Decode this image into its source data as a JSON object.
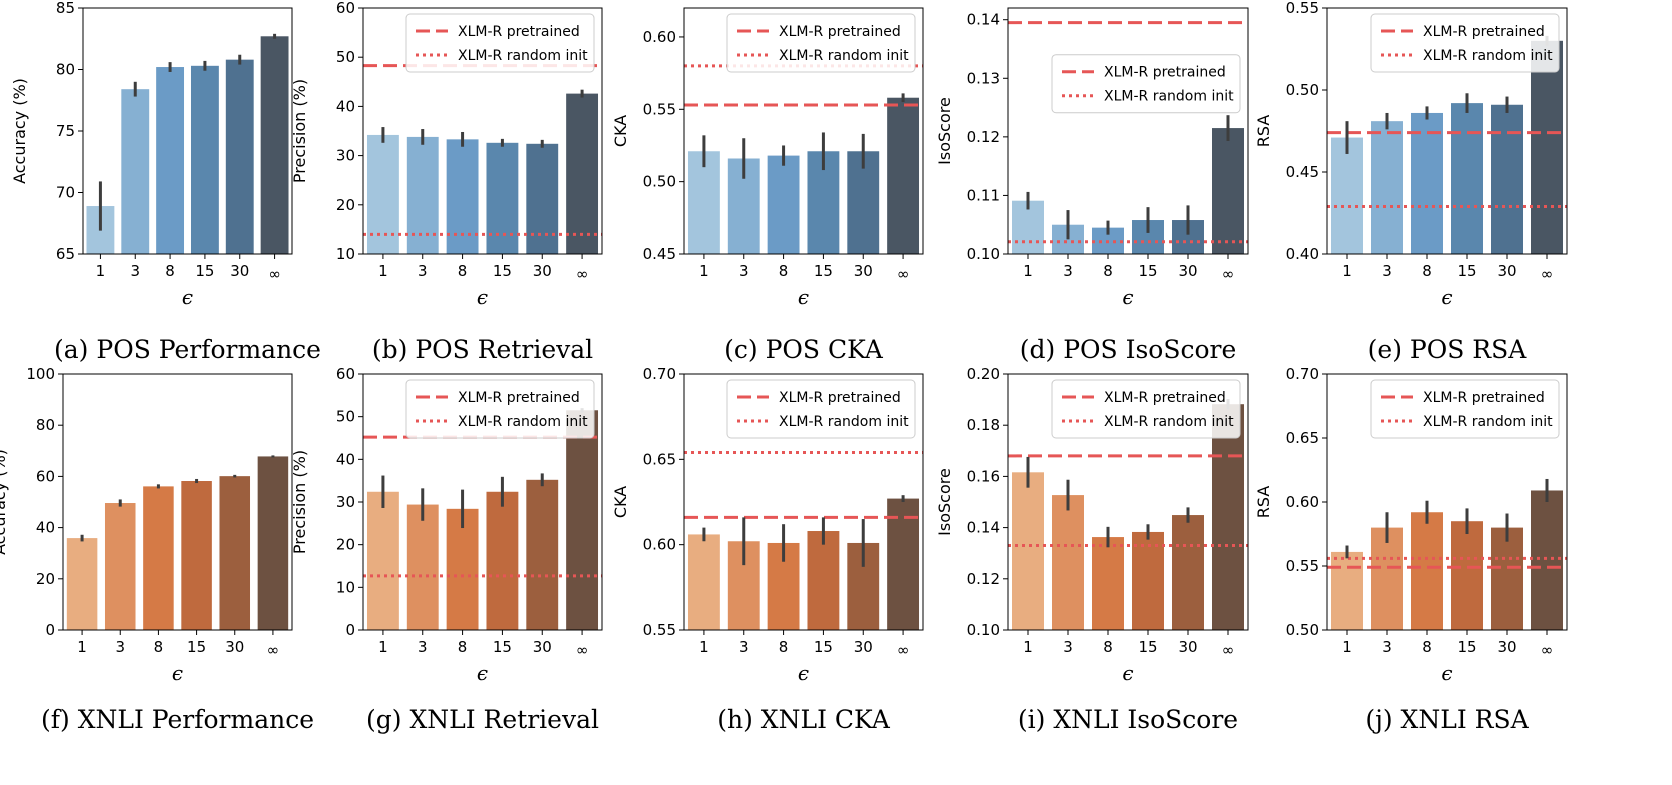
{
  "chart_data": [
    {
      "type": "bar",
      "title": "",
      "caption": "(a) POS Performance",
      "categories": [
        "1",
        "3",
        "8",
        "15",
        "30",
        "∞"
      ],
      "values": [
        68.9,
        78.4,
        80.2,
        80.3,
        80.8,
        82.7
      ],
      "errors": [
        2.0,
        0.6,
        0.4,
        0.4,
        0.4,
        0.2
      ],
      "ylabel": "Accuracy (%)",
      "xlabel": "ϵ",
      "ylim": [
        65,
        85
      ],
      "yticks": [
        65,
        70,
        75,
        80,
        85
      ],
      "ytick_labels": [
        "65",
        "70",
        "75",
        "80",
        "85"
      ],
      "palette": "blue",
      "legend": null,
      "lines": []
    },
    {
      "type": "bar",
      "title": "",
      "caption": "(b) POS Retrieval",
      "categories": [
        "1",
        "3",
        "8",
        "15",
        "30",
        "∞"
      ],
      "values": [
        34.2,
        33.8,
        33.3,
        32.6,
        32.4,
        42.6
      ],
      "errors": [
        1.6,
        1.6,
        1.5,
        0.8,
        0.8,
        0.8
      ],
      "ylabel": "Precision (%)",
      "xlabel": "ϵ",
      "ylim": [
        10,
        60
      ],
      "yticks": [
        10,
        20,
        30,
        40,
        50,
        60
      ],
      "ytick_labels": [
        "10",
        "20",
        "30",
        "40",
        "50",
        "60"
      ],
      "palette": "blue",
      "legend": "top-right",
      "lines": [
        {
          "label": "XLM-R pretrained",
          "style": "dashed",
          "value": 48.3
        },
        {
          "label": "XLM-R random init",
          "style": "dotted",
          "value": 14.0
        }
      ]
    },
    {
      "type": "bar",
      "title": "",
      "caption": "(c) POS CKA",
      "categories": [
        "1",
        "3",
        "8",
        "15",
        "30",
        "∞"
      ],
      "values": [
        0.521,
        0.516,
        0.518,
        0.521,
        0.521,
        0.558
      ],
      "errors": [
        0.011,
        0.014,
        0.007,
        0.013,
        0.012,
        0.003
      ],
      "ylabel": "CKA",
      "xlabel": "ϵ",
      "ylim": [
        0.45,
        0.62
      ],
      "yticks": [
        0.45,
        0.5,
        0.55,
        0.6
      ],
      "ytick_labels": [
        "0.45",
        "0.50",
        "0.55",
        "0.60"
      ],
      "palette": "blue",
      "legend": "top-right",
      "lines": [
        {
          "label": "XLM-R pretrained",
          "style": "dashed",
          "value": 0.553
        },
        {
          "label": "XLM-R random init",
          "style": "dotted",
          "value": 0.58
        }
      ]
    },
    {
      "type": "bar",
      "title": "",
      "caption": "(d) POS IsoScore",
      "categories": [
        "1",
        "3",
        "8",
        "15",
        "30",
        "∞"
      ],
      "values": [
        0.1091,
        0.105,
        0.1045,
        0.1058,
        0.1058,
        0.1215
      ],
      "errors": [
        0.0015,
        0.0025,
        0.0012,
        0.0022,
        0.0025,
        0.0022
      ],
      "ylabel": "IsoScore",
      "xlabel": "ϵ",
      "ylim": [
        0.1,
        0.142
      ],
      "yticks": [
        0.1,
        0.11,
        0.12,
        0.13,
        0.14
      ],
      "ytick_labels": [
        "0.10",
        "0.11",
        "0.12",
        "0.13",
        "0.14"
      ],
      "palette": "blue",
      "legend": "center-right",
      "lines": [
        {
          "label": "XLM-R pretrained",
          "style": "dashed",
          "value": 0.1395
        },
        {
          "label": "XLM-R random init",
          "style": "dotted",
          "value": 0.1021
        }
      ]
    },
    {
      "type": "bar",
      "title": "",
      "caption": "(e) POS RSA",
      "categories": [
        "1",
        "3",
        "8",
        "15",
        "30",
        "∞"
      ],
      "values": [
        0.471,
        0.481,
        0.486,
        0.492,
        0.491,
        0.53
      ],
      "errors": [
        0.01,
        0.005,
        0.004,
        0.006,
        0.005,
        0.003
      ],
      "ylabel": "RSA",
      "xlabel": "ϵ",
      "ylim": [
        0.4,
        0.55
      ],
      "yticks": [
        0.4,
        0.45,
        0.5,
        0.55
      ],
      "ytick_labels": [
        "0.40",
        "0.45",
        "0.50",
        "0.55"
      ],
      "palette": "blue",
      "legend": "top-right",
      "lines": [
        {
          "label": "XLM-R pretrained",
          "style": "dashed",
          "value": 0.474
        },
        {
          "label": "XLM-R random init",
          "style": "dotted",
          "value": 0.429
        }
      ]
    },
    {
      "type": "bar",
      "title": "",
      "caption": "(f) XNLI Performance",
      "categories": [
        "1",
        "3",
        "8",
        "15",
        "30",
        "∞"
      ],
      "values": [
        35.9,
        49.6,
        56.1,
        58.2,
        60.1,
        67.8
      ],
      "errors": [
        1.3,
        1.4,
        0.8,
        0.8,
        0.5,
        0.4
      ],
      "ylabel": "Accuracy (%)",
      "xlabel": "ϵ",
      "ylim": [
        0,
        100
      ],
      "yticks": [
        0,
        20,
        40,
        60,
        80,
        100
      ],
      "ytick_labels": [
        "0",
        "20",
        "40",
        "60",
        "80",
        "100"
      ],
      "palette": "orange",
      "legend": null,
      "lines": []
    },
    {
      "type": "bar",
      "title": "",
      "caption": "(g) XNLI Retrieval",
      "categories": [
        "1",
        "3",
        "8",
        "15",
        "30",
        "∞"
      ],
      "values": [
        32.4,
        29.4,
        28.4,
        32.4,
        35.2,
        51.5
      ],
      "errors": [
        3.8,
        3.8,
        4.5,
        3.5,
        1.5,
        0.5
      ],
      "ylabel": "Precision (%)",
      "xlabel": "ϵ",
      "ylim": [
        0,
        60
      ],
      "yticks": [
        0,
        10,
        20,
        30,
        40,
        50,
        60
      ],
      "ytick_labels": [
        "0",
        "10",
        "20",
        "30",
        "40",
        "50",
        "60"
      ],
      "palette": "orange",
      "legend": "top-right",
      "lines": [
        {
          "label": "XLM-R pretrained",
          "style": "dashed",
          "value": 45.2
        },
        {
          "label": "XLM-R random init",
          "style": "dotted",
          "value": 12.7
        }
      ]
    },
    {
      "type": "bar",
      "title": "",
      "caption": "(h) XNLI CKA",
      "categories": [
        "1",
        "3",
        "8",
        "15",
        "30",
        "∞"
      ],
      "values": [
        0.606,
        0.602,
        0.601,
        0.608,
        0.601,
        0.627
      ],
      "errors": [
        0.004,
        0.014,
        0.011,
        0.008,
        0.014,
        0.002
      ],
      "ylabel": "CKA",
      "xlabel": "ϵ",
      "ylim": [
        0.55,
        0.7
      ],
      "yticks": [
        0.55,
        0.6,
        0.65,
        0.7
      ],
      "ytick_labels": [
        "0.55",
        "0.60",
        "0.65",
        "0.70"
      ],
      "palette": "orange",
      "legend": "top-right",
      "lines": [
        {
          "label": "XLM-R pretrained",
          "style": "dashed",
          "value": 0.616
        },
        {
          "label": "XLM-R random init",
          "style": "dotted",
          "value": 0.654
        }
      ]
    },
    {
      "type": "bar",
      "title": "",
      "caption": "(i) XNLI IsoScore",
      "categories": [
        "1",
        "3",
        "8",
        "15",
        "30",
        "∞"
      ],
      "values": [
        0.1616,
        0.1527,
        0.1363,
        0.1383,
        0.1449,
        0.1882
      ],
      "errors": [
        0.006,
        0.006,
        0.004,
        0.003,
        0.003,
        0.002
      ],
      "ylabel": "IsoScore",
      "xlabel": "ϵ",
      "ylim": [
        0.1,
        0.2
      ],
      "yticks": [
        0.1,
        0.12,
        0.14,
        0.16,
        0.18,
        0.2
      ],
      "ytick_labels": [
        "0.10",
        "0.12",
        "0.14",
        "0.16",
        "0.18",
        "0.20"
      ],
      "palette": "orange",
      "legend": "top-right",
      "lines": [
        {
          "label": "XLM-R pretrained",
          "style": "dashed",
          "value": 0.168
        },
        {
          "label": "XLM-R random init",
          "style": "dotted",
          "value": 0.133
        }
      ]
    },
    {
      "type": "bar",
      "title": "",
      "caption": "(j) XNLI RSA",
      "categories": [
        "1",
        "3",
        "8",
        "15",
        "30",
        "∞"
      ],
      "values": [
        0.561,
        0.58,
        0.592,
        0.585,
        0.58,
        0.609
      ],
      "errors": [
        0.005,
        0.012,
        0.009,
        0.01,
        0.011,
        0.009
      ],
      "ylabel": "RSA",
      "xlabel": "ϵ",
      "ylim": [
        0.5,
        0.7
      ],
      "yticks": [
        0.5,
        0.55,
        0.6,
        0.65,
        0.7
      ],
      "ytick_labels": [
        "0.50",
        "0.55",
        "0.60",
        "0.65",
        "0.70"
      ],
      "palette": "orange",
      "legend": "top-right",
      "lines": [
        {
          "label": "XLM-R pretrained",
          "style": "dashed",
          "value": 0.549
        },
        {
          "label": "XLM-R random init",
          "style": "dotted",
          "value": 0.556
        }
      ]
    }
  ],
  "palettes": {
    "blue": [
      "#a3c5dd",
      "#86b0d2",
      "#6b9bc6",
      "#5a87ad",
      "#4f7190",
      "#4a5663"
    ],
    "orange": [
      "#e8ad80",
      "#de9060",
      "#d57a46",
      "#bf6a3e",
      "#9c5f3e",
      "#6d5141"
    ]
  },
  "line_color": "#e65656"
}
